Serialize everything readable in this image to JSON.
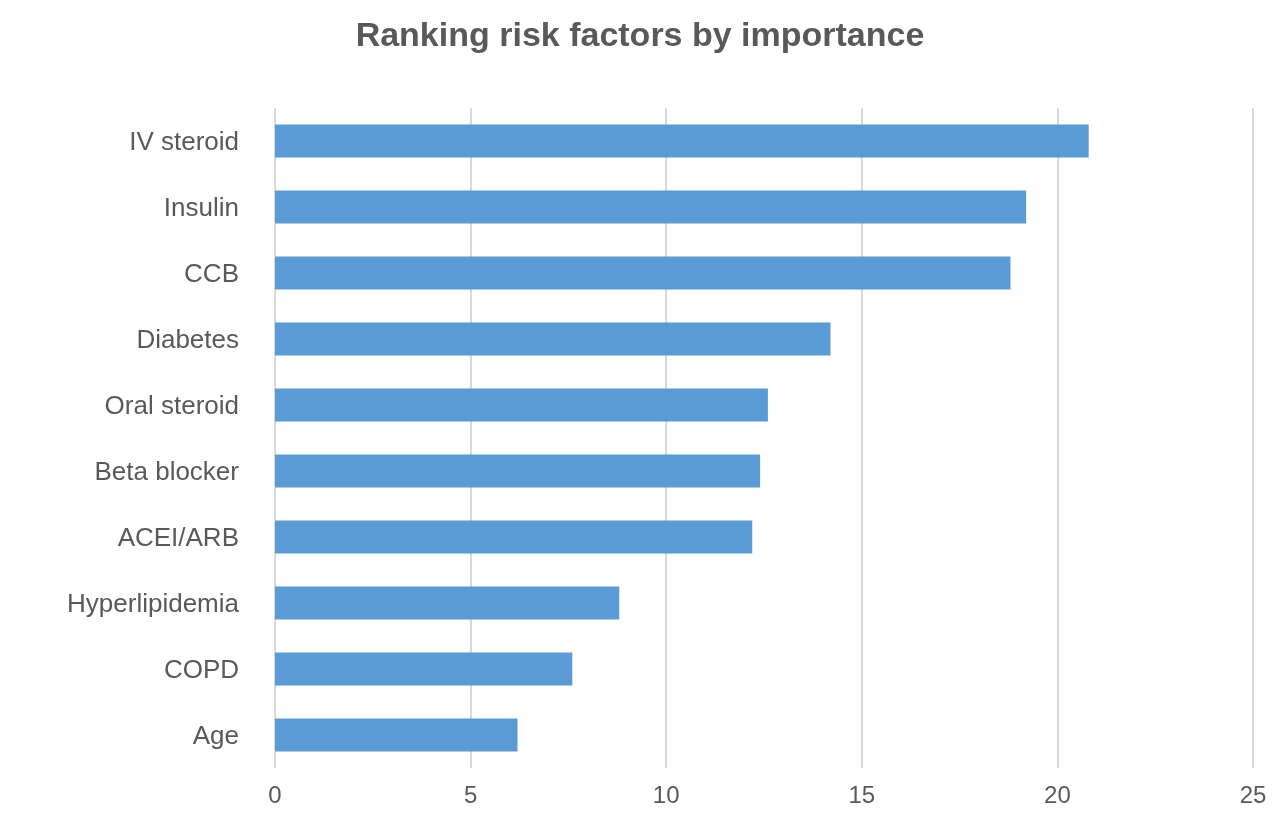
{
  "chart_data": {
    "type": "bar",
    "orientation": "horizontal",
    "title": "Ranking risk factors by importance",
    "categories": [
      "IV steroid",
      "Insulin",
      "CCB",
      "Diabetes",
      "Oral steroid",
      "Beta blocker",
      "ACEI/ARB",
      "Hyperlipidemia",
      "COPD",
      "Age"
    ],
    "values": [
      20.8,
      19.2,
      18.8,
      14.2,
      12.6,
      12.4,
      12.2,
      8.8,
      7.6,
      6.2
    ],
    "color": "#5b9bd5",
    "xlim": [
      0,
      25
    ],
    "xticks": [
      0,
      5,
      10,
      15,
      20,
      25
    ],
    "grid": "x"
  }
}
